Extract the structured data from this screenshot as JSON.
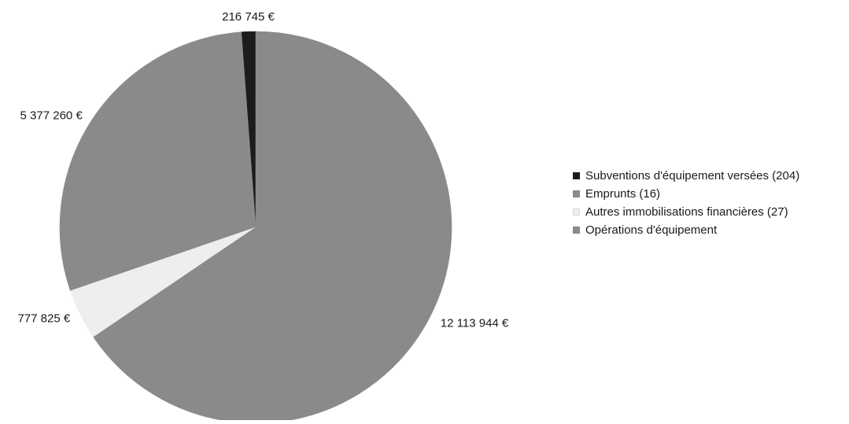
{
  "chart_data": {
    "type": "pie",
    "categories": [
      "Subventions d'équipement versées (204)",
      "Emprunts (16)",
      "Autres immobilisations financières (27)",
      "Opérations d'équipement"
    ],
    "values": [
      216745,
      5377260,
      777825,
      12113944
    ],
    "data_labels": [
      "216 745 €",
      "5 377 260 €",
      "777 825 €",
      "12 113 944 €"
    ],
    "colors": [
      "#1c1c1c",
      "#8a8a8a",
      "#eeeeee",
      "#8a8a8a"
    ],
    "legend_position": "right",
    "start_angle_deg": 0,
    "direction": "counterclockwise"
  },
  "legend": {
    "items": [
      {
        "label": "Subventions d'équipement versées (204)",
        "color": "#1c1c1c",
        "icon": "square-swatch"
      },
      {
        "label": "Emprunts (16)",
        "color": "#8a8a8a",
        "icon": "square-swatch"
      },
      {
        "label": "Autres immobilisations financières (27)",
        "color": "#eeeeee",
        "icon": "square-swatch"
      },
      {
        "label": "Opérations d'équipement",
        "color": "#8a8a8a",
        "icon": "square-swatch"
      }
    ]
  }
}
